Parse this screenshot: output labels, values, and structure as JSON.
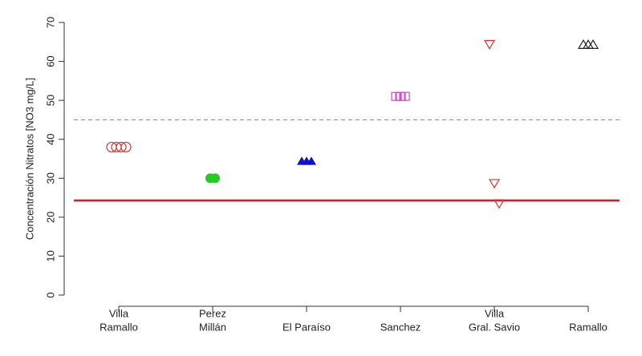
{
  "chart_data": {
    "type": "scatter",
    "ylabel": "Concentración Nitratos [NO3 mg/L]",
    "categories": [
      [
        "Villa",
        "Ramallo"
      ],
      [
        "Perez",
        "Millán"
      ],
      [
        "El Paraíso"
      ],
      [
        "Sanchez"
      ],
      [
        "Villa",
        "Gral. Savio"
      ],
      [
        "Ramallo"
      ]
    ],
    "series": [
      {
        "color": "#e03030",
        "marker": "open-circle",
        "values": [
          38,
          38,
          38,
          38
        ]
      },
      {
        "color": "#22cc22",
        "marker": "filled-circle",
        "values": [
          30,
          30
        ]
      },
      {
        "color": "#1010cc",
        "marker": "filled-triangle",
        "values": [
          34.3,
          34.3,
          34.3
        ]
      },
      {
        "color": "#e040e0",
        "marker": "open-square-bar",
        "values": [
          51,
          51,
          51
        ]
      },
      {
        "color": "#e03030",
        "marker": "open-down-triangle",
        "values": [
          64.5,
          28.8,
          23.6
        ]
      },
      {
        "color": "#222222",
        "marker": "open-triangle",
        "values": [
          64.2,
          64.2,
          64.2
        ]
      }
    ],
    "hlines": [
      {
        "value": 24.3,
        "color": "#d42020",
        "style": "solid"
      },
      {
        "value": 45,
        "color": "#e06060",
        "style": "dashed"
      }
    ],
    "ylim": [
      0,
      70
    ],
    "yticks": [
      0,
      10,
      20,
      30,
      40,
      50,
      60,
      70
    ]
  }
}
